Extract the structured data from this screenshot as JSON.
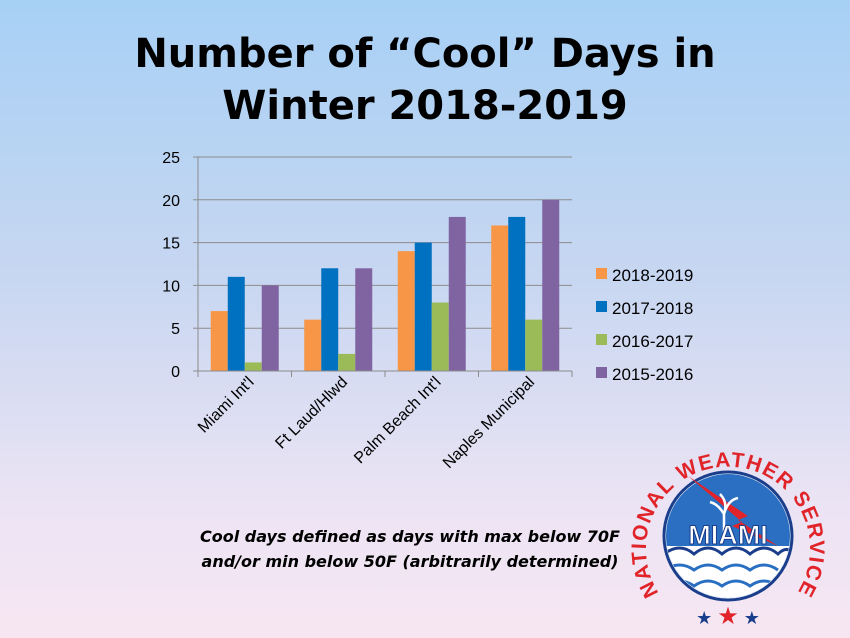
{
  "chart_data": {
    "type": "bar",
    "title_lines": [
      "Number of “Cool” Days in",
      "Winter 2018-2019"
    ],
    "categories": [
      "Miami Int'l",
      "Ft Laud/Hlwd",
      "Palm Beach Int'l",
      "Naples Municipal"
    ],
    "series": [
      {
        "name": "2018-2019",
        "color": "#f79646",
        "values": [
          7,
          6,
          14,
          17
        ]
      },
      {
        "name": "2017-2018",
        "color": "#0070c0",
        "values": [
          11,
          12,
          15,
          18
        ]
      },
      {
        "name": "2016-2017",
        "color": "#9bbb59",
        "values": [
          1,
          2,
          8,
          6
        ]
      },
      {
        "name": "2015-2016",
        "color": "#8064a2",
        "values": [
          10,
          12,
          18,
          20
        ]
      }
    ],
    "ylim": [
      0,
      25
    ],
    "yticks": [
      0,
      5,
      10,
      15,
      20,
      25
    ],
    "grid": true,
    "legend": "right"
  },
  "note": "Cool days defined as days with max below 70F and/or min below 50F (arbitrarily determined)",
  "logo": {
    "arc_text": "NATIONAL WEATHER SERVICE",
    "center_text": "MIAMI"
  }
}
